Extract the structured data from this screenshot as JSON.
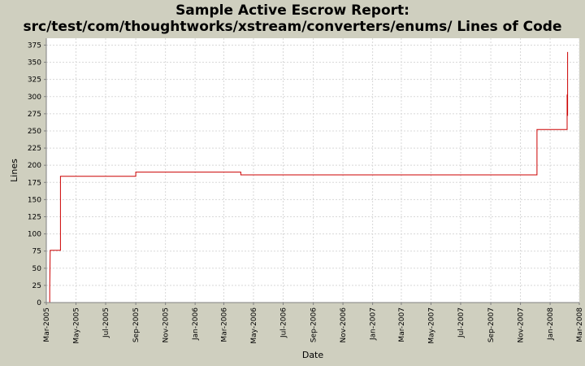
{
  "chart_data": {
    "type": "line",
    "title": "Sample Active Escrow Report:",
    "subtitle": "src/test/com/thoughtworks/xstream/converters/enums/ Lines of Code",
    "xlabel": "Date",
    "ylabel": "Lines",
    "ylim": [
      0,
      385
    ],
    "xlim": [
      "2005-03-01",
      "2008-03-01"
    ],
    "yticks": [
      0,
      25,
      50,
      75,
      100,
      125,
      150,
      175,
      200,
      225,
      250,
      275,
      300,
      325,
      350,
      375
    ],
    "xticks": [
      {
        "label": "Mar-2005",
        "date": "2005-03-01"
      },
      {
        "label": "May-2005",
        "date": "2005-05-01"
      },
      {
        "label": "Jul-2005",
        "date": "2005-07-01"
      },
      {
        "label": "Sep-2005",
        "date": "2005-09-01"
      },
      {
        "label": "Nov-2005",
        "date": "2005-11-01"
      },
      {
        "label": "Jan-2006",
        "date": "2006-01-01"
      },
      {
        "label": "Mar-2006",
        "date": "2006-03-01"
      },
      {
        "label": "May-2006",
        "date": "2006-05-01"
      },
      {
        "label": "Jul-2006",
        "date": "2006-07-01"
      },
      {
        "label": "Sep-2006",
        "date": "2006-09-01"
      },
      {
        "label": "Nov-2006",
        "date": "2006-11-01"
      },
      {
        "label": "Jan-2007",
        "date": "2007-01-01"
      },
      {
        "label": "Mar-2007",
        "date": "2007-03-01"
      },
      {
        "label": "May-2007",
        "date": "2007-05-01"
      },
      {
        "label": "Jul-2007",
        "date": "2007-07-01"
      },
      {
        "label": "Sep-2007",
        "date": "2007-09-01"
      },
      {
        "label": "Nov-2007",
        "date": "2007-11-01"
      },
      {
        "label": "Jan-2008",
        "date": "2008-01-01"
      },
      {
        "label": "Mar-2008",
        "date": "2008-03-01"
      }
    ],
    "step": true,
    "grid": true,
    "series": [
      {
        "color": "#cc0000",
        "points": [
          {
            "x": "2005-03-08",
            "y": 0
          },
          {
            "x": "2005-03-08",
            "y": 22
          },
          {
            "x": "2005-03-09",
            "y": 76
          },
          {
            "x": "2005-03-30",
            "y": 76
          },
          {
            "x": "2005-03-30",
            "y": 184
          },
          {
            "x": "2005-09-01",
            "y": 184
          },
          {
            "x": "2005-09-01",
            "y": 190
          },
          {
            "x": "2006-04-05",
            "y": 190
          },
          {
            "x": "2006-04-05",
            "y": 186
          },
          {
            "x": "2007-12-05",
            "y": 186
          },
          {
            "x": "2007-12-05",
            "y": 252
          },
          {
            "x": "2008-02-05",
            "y": 252
          },
          {
            "x": "2008-02-05",
            "y": 303
          },
          {
            "x": "2008-02-06",
            "y": 272
          },
          {
            "x": "2008-02-06",
            "y": 365
          }
        ]
      }
    ]
  },
  "colors": {
    "background": "#cfcfbf",
    "plot_background": "#ffffff",
    "gridline": "#d8d8d8",
    "series": "#cc0000"
  }
}
